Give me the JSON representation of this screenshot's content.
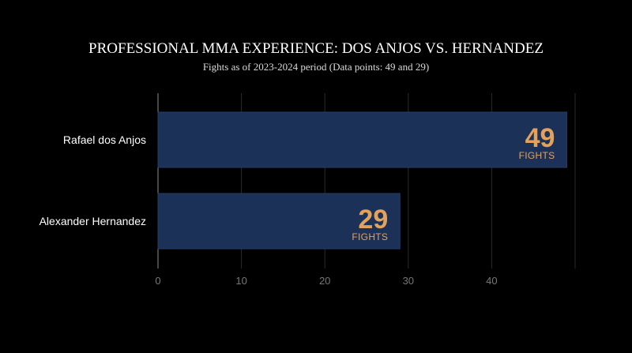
{
  "chart_data": {
    "type": "bar",
    "orientation": "horizontal",
    "title": "PROFESSIONAL MMA EXPERIENCE: DOS ANJOS VS. HERNANDEZ",
    "subtitle": "Fights as of 2023-2024 period (Data points: 49 and 29)",
    "categories": [
      "Rafael dos Anjos",
      "Alexander Hernandez"
    ],
    "values": [
      49,
      29
    ],
    "value_unit_label": "FIGHTS",
    "xlabel": "",
    "ylabel": "",
    "xlim": [
      0,
      50
    ],
    "x_ticks": [
      0,
      10,
      20,
      30,
      40
    ],
    "grid": true,
    "legend": "none",
    "colors": {
      "bar": "#1c3157",
      "bar_border": "#253d66",
      "value_label": "#e3a25b",
      "grid": "#2a2a2a",
      "background": "#000000"
    }
  }
}
